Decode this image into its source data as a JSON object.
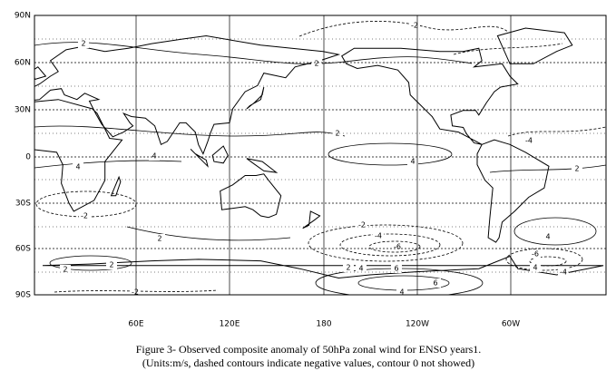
{
  "map": {
    "lat_labels": [
      "90N",
      "60N",
      "30N",
      "0",
      "30S",
      "60S",
      "90S"
    ],
    "lon_labels": [
      "60E",
      "120E",
      "180",
      "120W",
      "60W"
    ],
    "contour_labels": [
      "2",
      "-2",
      "2",
      "2",
      "4",
      "-4",
      "2",
      "4",
      "4",
      "-2",
      "2",
      "-2",
      "-4",
      "-6",
      "4",
      "-6",
      "-4",
      "4",
      "2",
      "4",
      "6",
      "6",
      "4",
      "2",
      "2",
      "-2"
    ]
  },
  "caption": {
    "line1": "Figure 3- Observed composite anomaly of 50hPa zonal wind for ENSO years1.",
    "line2": "(Units:m/s, dashed contours indicate negative values, contour 0 not showed)"
  }
}
